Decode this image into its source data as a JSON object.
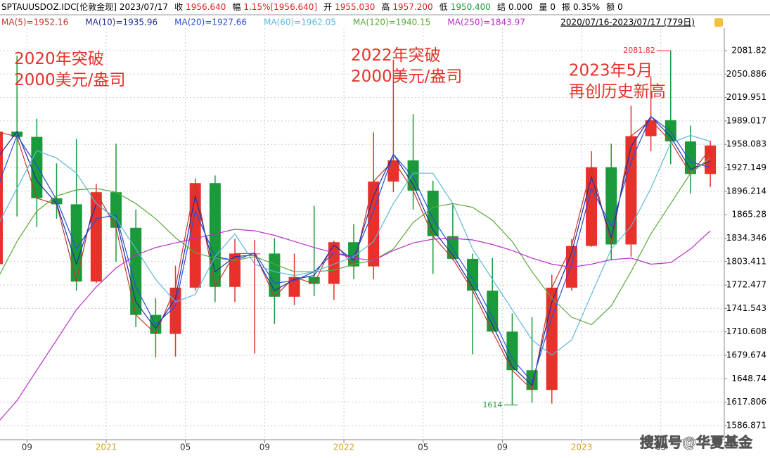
{
  "header": {
    "items": [
      {
        "label": "SPTAUUSDOZ.IDC[伦敦金现]",
        "value": "2023/07/17",
        "color": "#000000"
      },
      {
        "label": "收",
        "value": "1956.640",
        "color": "#e02020"
      },
      {
        "label": "幅",
        "value": "1.15%[1956.640]",
        "color": "#e02020"
      },
      {
        "label": "开",
        "value": "1955.030",
        "color": "#e02020"
      },
      {
        "label": "高",
        "value": "1957.200",
        "color": "#e02020"
      },
      {
        "label": "低",
        "value": "1950.400",
        "color": "#1a9a3a"
      },
      {
        "label": "结",
        "value": "0.000",
        "color": "#000000"
      },
      {
        "label": "量",
        "value": "0",
        "color": "#000000"
      },
      {
        "label": "振",
        "value": "0.35%",
        "color": "#000000"
      },
      {
        "label": "额",
        "value": "0",
        "color": "#000000"
      }
    ],
    "range": "2020/07/16-2023/07/17 (779日)"
  },
  "chart_data": {
    "type": "candlestick",
    "x": [
      "2020-07",
      "2020-08",
      "2020-09",
      "2020-10",
      "2020-11",
      "2020-12",
      "2021-01",
      "2021-02",
      "2021-03",
      "2021-04",
      "2021-05",
      "2021-06",
      "2021-07",
      "2021-08",
      "2021-09",
      "2021-10",
      "2021-11",
      "2021-12",
      "2022-01",
      "2022-02",
      "2022-03",
      "2022-04",
      "2022-05",
      "2022-06",
      "2022-07",
      "2022-08",
      "2022-09",
      "2022-10",
      "2022-11",
      "2022-12",
      "2023-01",
      "2023-02",
      "2023-03",
      "2023-04",
      "2023-05",
      "2023-06",
      "2023-07"
    ],
    "open": [
      1800,
      1975,
      1968,
      1887,
      1879,
      1777,
      1895,
      1848,
      1733,
      1708,
      1769,
      1907,
      1770,
      1814,
      1814,
      1757,
      1783,
      1774,
      1829,
      1797,
      1909,
      1937,
      1897,
      1837,
      1807,
      1765,
      1711,
      1660,
      1634,
      1769,
      1824,
      1928,
      1826,
      1969,
      1990,
      1962,
      1919
    ],
    "high": [
      1980,
      2075,
      1992,
      1933,
      1965,
      1906,
      1959,
      1872,
      1755,
      1798,
      1913,
      1917,
      1833,
      1832,
      1834,
      1814,
      1877,
      1831,
      1853,
      1974,
      2070,
      1998,
      1910,
      1879,
      1814,
      1808,
      1735,
      1730,
      1786,
      1833,
      1949,
      1959,
      2009,
      2048,
      2081.82,
      1983,
      1963
    ],
    "low": [
      1797,
      1863,
      1849,
      1860,
      1765,
      1775,
      1803,
      1717,
      1677,
      1678,
      1765,
      1750,
      1750,
      1682,
      1721,
      1746,
      1758,
      1753,
      1780,
      1780,
      1895,
      1872,
      1787,
      1805,
      1681,
      1709,
      1614,
      1617,
      1616,
      1765,
      1823,
      1805,
      1810,
      1949,
      1932,
      1893,
      1902
    ],
    "close": [
      1975,
      1968,
      1887,
      1879,
      1777,
      1895,
      1848,
      1733,
      1708,
      1769,
      1907,
      1770,
      1814,
      1814,
      1757,
      1783,
      1774,
      1829,
      1797,
      1909,
      1937,
      1897,
      1837,
      1807,
      1765,
      1711,
      1660,
      1634,
      1769,
      1824,
      1928,
      1826,
      1969,
      1990,
      1962,
      1919,
      1956.64
    ],
    "up_color": "#e8312a",
    "down_color": "#1a9a3a",
    "series": [
      {
        "name": "MA(5)=1952.16",
        "color": "#c0392b",
        "values": [
          1975,
          1968,
          1887,
          1879,
          1777,
          1895,
          1848,
          1733,
          1708,
          1769,
          1907,
          1770,
          1814,
          1814,
          1757,
          1783,
          1774,
          1829,
          1797,
          1909,
          1937,
          1897,
          1837,
          1807,
          1765,
          1711,
          1660,
          1634,
          1769,
          1824,
          1928,
          1826,
          1969,
          1990,
          1962,
          1919,
          1952.16
        ]
      },
      {
        "name": "MA(10)=1935.96",
        "color": "#1f2f9c",
        "values": [
          1940,
          1975,
          1910,
          1880,
          1800,
          1880,
          1860,
          1750,
          1715,
          1755,
          1890,
          1790,
          1810,
          1812,
          1765,
          1780,
          1785,
          1825,
          1805,
          1890,
          1945,
          1905,
          1845,
          1812,
          1770,
          1720,
          1665,
          1640,
          1750,
          1815,
          1915,
          1835,
          1955,
          1995,
          1968,
          1925,
          1935.96
        ]
      },
      {
        "name": "MA(20)=1927.66",
        "color": "#2a4fd6",
        "values": [
          1900,
          1970,
          1930,
          1885,
          1820,
          1860,
          1865,
          1770,
          1720,
          1745,
          1870,
          1810,
          1805,
          1815,
          1775,
          1778,
          1790,
          1815,
          1810,
          1870,
          1945,
          1915,
          1860,
          1820,
          1780,
          1730,
          1675,
          1645,
          1730,
          1800,
          1900,
          1850,
          1935,
          1995,
          1975,
          1935,
          1927.66
        ]
      },
      {
        "name": "MA(60)=1962.05",
        "color": "#5fb8d8",
        "values": [
          1850,
          1900,
          1950,
          1940,
          1920,
          1880,
          1860,
          1820,
          1780,
          1750,
          1760,
          1810,
          1840,
          1800,
          1790,
          1785,
          1790,
          1800,
          1810,
          1830,
          1880,
          1920,
          1920,
          1880,
          1820,
          1780,
          1740,
          1700,
          1680,
          1700,
          1760,
          1820,
          1850,
          1900,
          1960,
          1970,
          1962.05
        ]
      },
      {
        "name": "MA(120)=1940.15",
        "color": "#5aa83a",
        "values": [
          1780,
          1830,
          1870,
          1890,
          1898,
          1900,
          1895,
          1880,
          1860,
          1835,
          1815,
          1808,
          1805,
          1810,
          1800,
          1790,
          1790,
          1792,
          1800,
          1805,
          1820,
          1855,
          1875,
          1880,
          1875,
          1858,
          1830,
          1790,
          1755,
          1730,
          1720,
          1745,
          1790,
          1840,
          1880,
          1920,
          1940.15
        ]
      },
      {
        "name": "MA(250)=1843.97",
        "color": "#b82fc9",
        "values": [
          1590,
          1620,
          1660,
          1700,
          1740,
          1770,
          1795,
          1812,
          1822,
          1828,
          1834,
          1840,
          1846,
          1844,
          1838,
          1830,
          1822,
          1815,
          1808,
          1805,
          1818,
          1828,
          1833,
          1834,
          1832,
          1826,
          1818,
          1808,
          1800,
          1796,
          1800,
          1806,
          1808,
          1800,
          1802,
          1820,
          1843.97
        ]
      }
    ],
    "ylim": [
      1568.3,
      2111.5
    ],
    "yticks": [
      2081.82,
      2050.886,
      2019.951,
      1989.017,
      1958.083,
      1927.149,
      1896.214,
      1865.28,
      1834.346,
      1803.411,
      1772.477,
      1741.543,
      1710.608,
      1679.674,
      1648.74,
      1617.806,
      1586.871
    ],
    "xticks": [
      {
        "value": "2020-09",
        "label": "09"
      },
      {
        "value": "2021-01",
        "label": "2021"
      },
      {
        "value": "2021-05",
        "label": "05"
      },
      {
        "value": "2021-09",
        "label": "09"
      },
      {
        "value": "2022-01",
        "label": "2022"
      },
      {
        "value": "2022-05",
        "label": "05"
      },
      {
        "value": "2022-09",
        "label": "09"
      },
      {
        "value": "2023-01",
        "label": "2023"
      },
      {
        "value": "2023-05",
        "label": "05"
      }
    ],
    "year_tick_color": "#d4a020",
    "grid": true,
    "annotations": [
      {
        "lines": [
          "2020年突破",
          "2000美元/盎司"
        ],
        "x": "2020-08",
        "y": 2070
      },
      {
        "lines": [
          "2022年突破",
          "2000美元/盎司"
        ],
        "x": "2022-01",
        "y": 2075
      },
      {
        "lines": [
          "2023年5月",
          "再创历史新高"
        ],
        "x": "2022-12",
        "y": 2055
      }
    ],
    "max_label": {
      "text": "2081.82",
      "x": "2023-05",
      "value": 2081.82
    },
    "min_label": {
      "text": "1614",
      "x": "2022-09",
      "value": 1614
    }
  },
  "watermark": "搜狐号@华夏基金"
}
